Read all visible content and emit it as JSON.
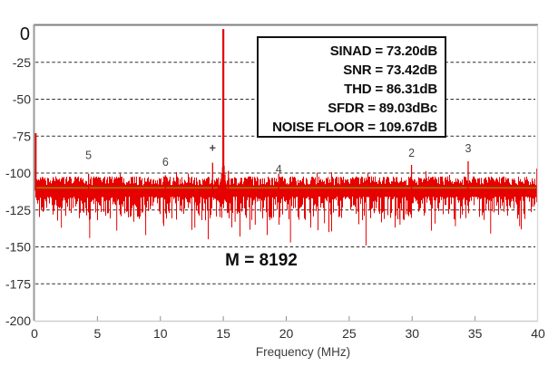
{
  "page": {
    "background": "#ffffff"
  },
  "chart_data": {
    "type": "line",
    "title": "",
    "xlabel": "Frequency (MHz)",
    "ylabel": "",
    "x_range": [
      0,
      40
    ],
    "y_range": [
      -200,
      0
    ],
    "x_ticks": [
      0,
      5,
      10,
      15,
      20,
      25,
      30,
      35,
      40
    ],
    "y_ticks": [
      0,
      -25,
      -50,
      -75,
      -100,
      -125,
      -150,
      -175,
      -200
    ],
    "grid": "horizontal-dashed",
    "legend": "none",
    "series_color": "#e60000",
    "gridline_color": "#2b2b2b",
    "frame_colors": {
      "top": "#7f7f7f",
      "left": "#9a9a9a",
      "right": "#d9d9d9",
      "bottom": "#cfcfcf"
    },
    "tick_label_color": "#2f2f2f",
    "marker_label_color": "#454545",
    "noise_floor_line": {
      "level_db": -110,
      "color": "#8f8f10"
    },
    "dc_spike": {
      "freq_mhz": 0.08,
      "level_db": -73
    },
    "fundamental": {
      "freq_mhz": 15,
      "level_db": -2.5,
      "base_db": -120
    },
    "fundamental_skirt": [
      [
        -4,
        -108
      ],
      [
        -3,
        -104
      ],
      [
        -2,
        -100
      ],
      [
        -1,
        -96
      ],
      [
        1,
        -95
      ],
      [
        2,
        -101
      ],
      [
        3,
        -107
      ]
    ],
    "aux_spikes": [
      [
        14.6,
        -103
      ],
      [
        15.4,
        -98.5
      ],
      [
        39.9,
        -97
      ]
    ],
    "harmonics": [
      {
        "label": "+",
        "freq_mhz": 14.15,
        "level_db": -93,
        "label_db": -83
      },
      {
        "label": "2",
        "freq_mhz": 29.95,
        "level_db": -94.5,
        "label_db": -86.5
      },
      {
        "label": "3",
        "freq_mhz": 34.45,
        "level_db": -92,
        "label_db": -83.5
      },
      {
        "label": "4",
        "freq_mhz": 19.4,
        "level_db": -100.5,
        "label_db": -97.5
      },
      {
        "label": "5",
        "freq_mhz": 4.3,
        "level_db": -100.5,
        "label_db": -88
      },
      {
        "label": "6",
        "freq_mhz": 10.4,
        "level_db": -101.5,
        "label_db": -92.5
      }
    ],
    "noise": {
      "seed": 1337,
      "band_top_db": -102.3,
      "band_bottom_db": -116,
      "mean_db": -112,
      "deep_spikes": [
        [
          2.1,
          -137
        ],
        [
          4.35,
          -144
        ],
        [
          6.5,
          -139
        ],
        [
          8.8,
          -142
        ],
        [
          10.2,
          -134
        ],
        [
          12.7,
          -137
        ],
        [
          15.9,
          -133
        ],
        [
          17.5,
          -135
        ],
        [
          20.3,
          -147
        ],
        [
          23.0,
          -134
        ],
        [
          26.3,
          -149
        ],
        [
          29.0,
          -135
        ],
        [
          31.5,
          -139
        ],
        [
          33.4,
          -136
        ],
        [
          36.2,
          -141
        ],
        [
          38.5,
          -136
        ]
      ]
    },
    "annotation_m": "M = 8192",
    "stats_box": {
      "lines": [
        "SINAD = 73.20dB",
        "SNR = 73.42dB",
        "THD = 86.31dB",
        "SFDR = 89.03dBc",
        "NOISE FLOOR = 109.67dB"
      ]
    }
  }
}
